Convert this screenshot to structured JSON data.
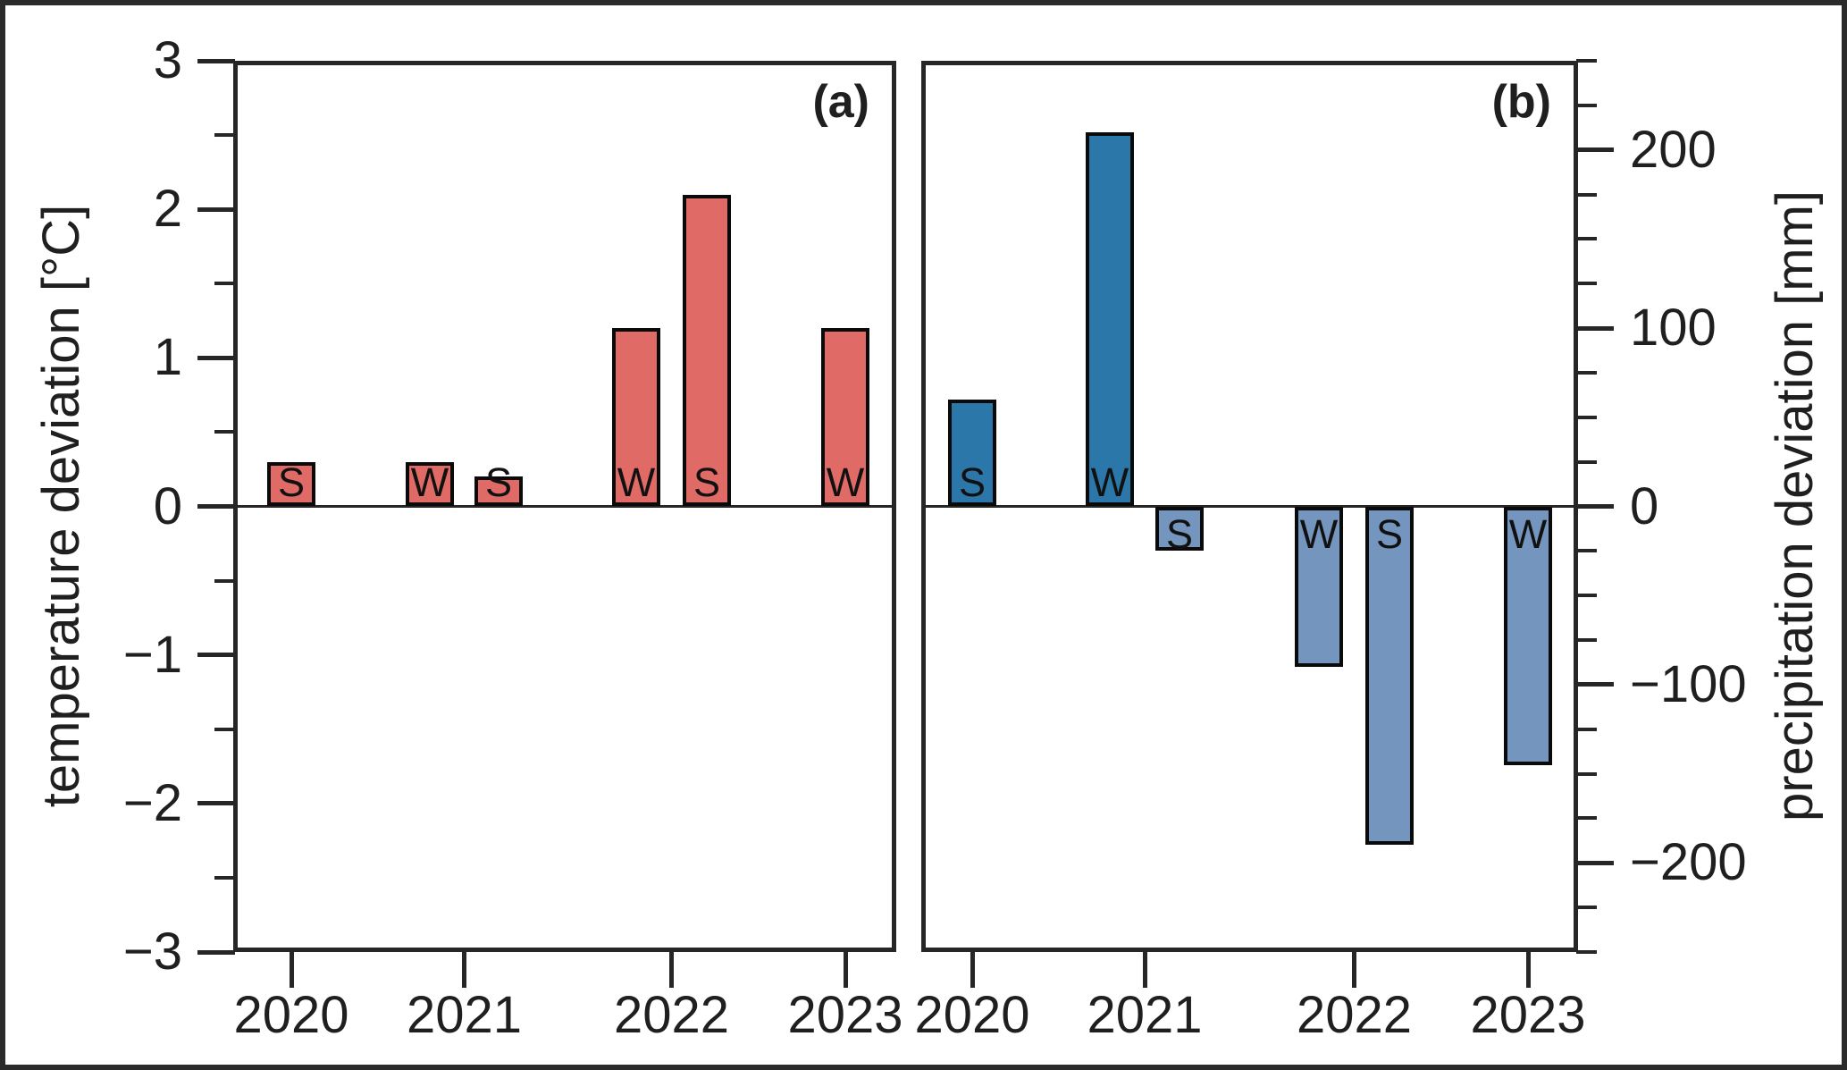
{
  "figure": {
    "background": "#ffffff",
    "border_color": "#2b2b2b",
    "spine_color": "#262626",
    "text_color": "#1f1f1f"
  },
  "chart_data": [
    {
      "type": "bar",
      "panel_tag": "(a)",
      "ylabel": "temperature deviation [°C]",
      "ylim": [
        -3,
        3
      ],
      "grid": false,
      "legend": "none",
      "x_tick_labels": [
        "2020",
        "2021",
        "2022",
        "2023"
      ],
      "y_major_ticks": [
        {
          "value": 3,
          "label": "3"
        },
        {
          "value": 2,
          "label": "2"
        },
        {
          "value": 1,
          "label": "1"
        },
        {
          "value": 0,
          "label": "0"
        },
        {
          "value": -1,
          "label": "−1"
        },
        {
          "value": -2,
          "label": "−2"
        },
        {
          "value": -3,
          "label": "−3"
        }
      ],
      "y_minor_ticks": [
        2.5,
        1.5,
        0.5,
        -0.5,
        -1.5,
        -2.5
      ],
      "bar_color_positive": "#E06A66",
      "bar_color_negative": "#E06A66",
      "bar_edge_color": "#0a0a0a",
      "bars": [
        {
          "year": "2020",
          "season": "S",
          "value": 0.3
        },
        {
          "year": "2021",
          "season": "W",
          "value": 0.3
        },
        {
          "year": "2021",
          "season": "S",
          "value": 0.2
        },
        {
          "year": "2022",
          "season": "W",
          "value": 1.2
        },
        {
          "year": "2022",
          "season": "S",
          "value": 2.1
        },
        {
          "year": "2023",
          "season": "W",
          "value": 1.2
        }
      ]
    },
    {
      "type": "bar",
      "panel_tag": "(b)",
      "ylabel": "precipitation deviation [mm]",
      "ylim": [
        -250,
        250
      ],
      "grid": false,
      "legend": "none",
      "x_tick_labels": [
        "2020",
        "2021",
        "2022",
        "2023"
      ],
      "y_major_ticks": [
        {
          "value": 200,
          "label": "200"
        },
        {
          "value": 100,
          "label": "100"
        },
        {
          "value": 0,
          "label": "0"
        },
        {
          "value": -100,
          "label": "−100"
        },
        {
          "value": -200,
          "label": "−200"
        }
      ],
      "y_minor_ticks": [
        250,
        225,
        175,
        150,
        125,
        75,
        50,
        25,
        -25,
        -50,
        -75,
        -125,
        -150,
        -175,
        -225,
        -250
      ],
      "bar_color_positive": "#2B77A9",
      "bar_color_negative": "#7495BD",
      "bar_edge_color": "#0a0a0a",
      "bars": [
        {
          "year": "2020",
          "season": "S",
          "value": 60
        },
        {
          "year": "2021",
          "season": "W",
          "value": 210
        },
        {
          "year": "2021",
          "season": "S",
          "value": -25
        },
        {
          "year": "2022",
          "season": "W",
          "value": -90
        },
        {
          "year": "2022",
          "season": "S",
          "value": -190
        },
        {
          "year": "2023",
          "season": "W",
          "value": -145
        }
      ]
    }
  ]
}
